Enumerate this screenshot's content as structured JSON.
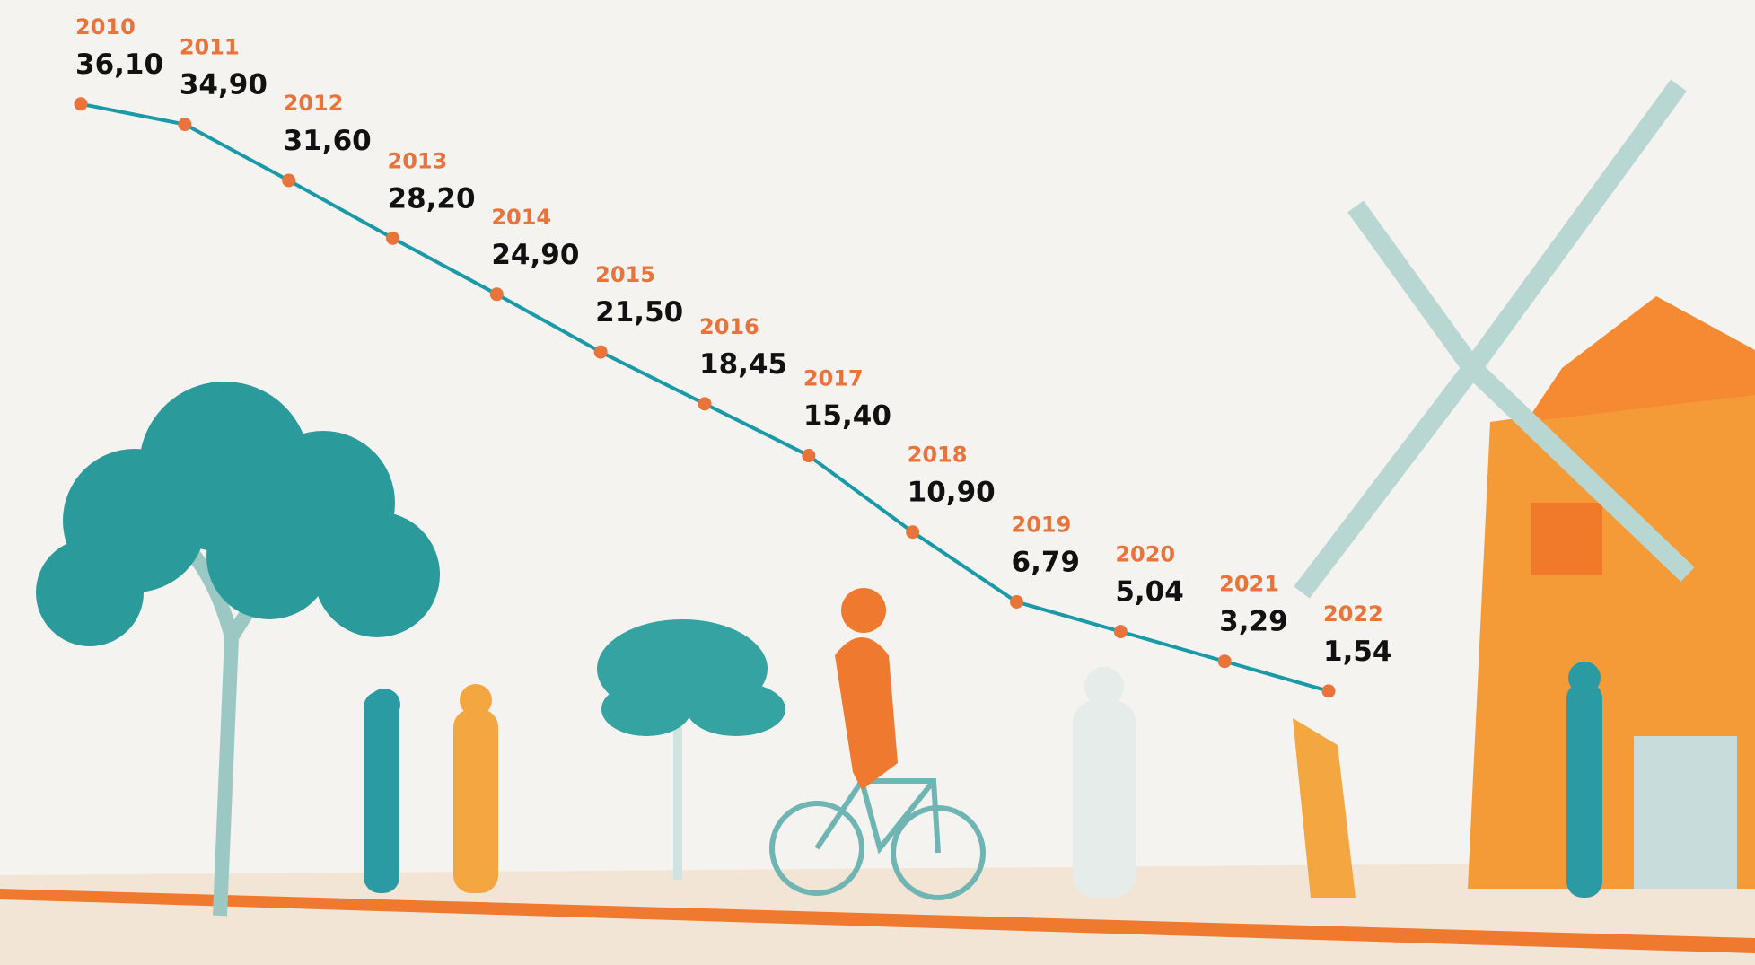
{
  "chart_data": {
    "type": "line",
    "categories": [
      "2010",
      "2011",
      "2012",
      "2013",
      "2014",
      "2015",
      "2016",
      "2017",
      "2018",
      "2019",
      "2020",
      "2021",
      "2022"
    ],
    "values": [
      36.1,
      34.9,
      31.6,
      28.2,
      24.9,
      21.5,
      18.45,
      15.4,
      10.9,
      6.79,
      5.04,
      3.29,
      1.54
    ],
    "value_labels": [
      "36,10",
      "34,90",
      "31,60",
      "28,20",
      "24,90",
      "21,50",
      "18,45",
      "15,40",
      "10,90",
      "6,79",
      "5,04",
      "3,29",
      "1,54"
    ],
    "color": "#1a9aa8",
    "marker_color": "#e8743b",
    "ylim": [
      0,
      40
    ]
  }
}
